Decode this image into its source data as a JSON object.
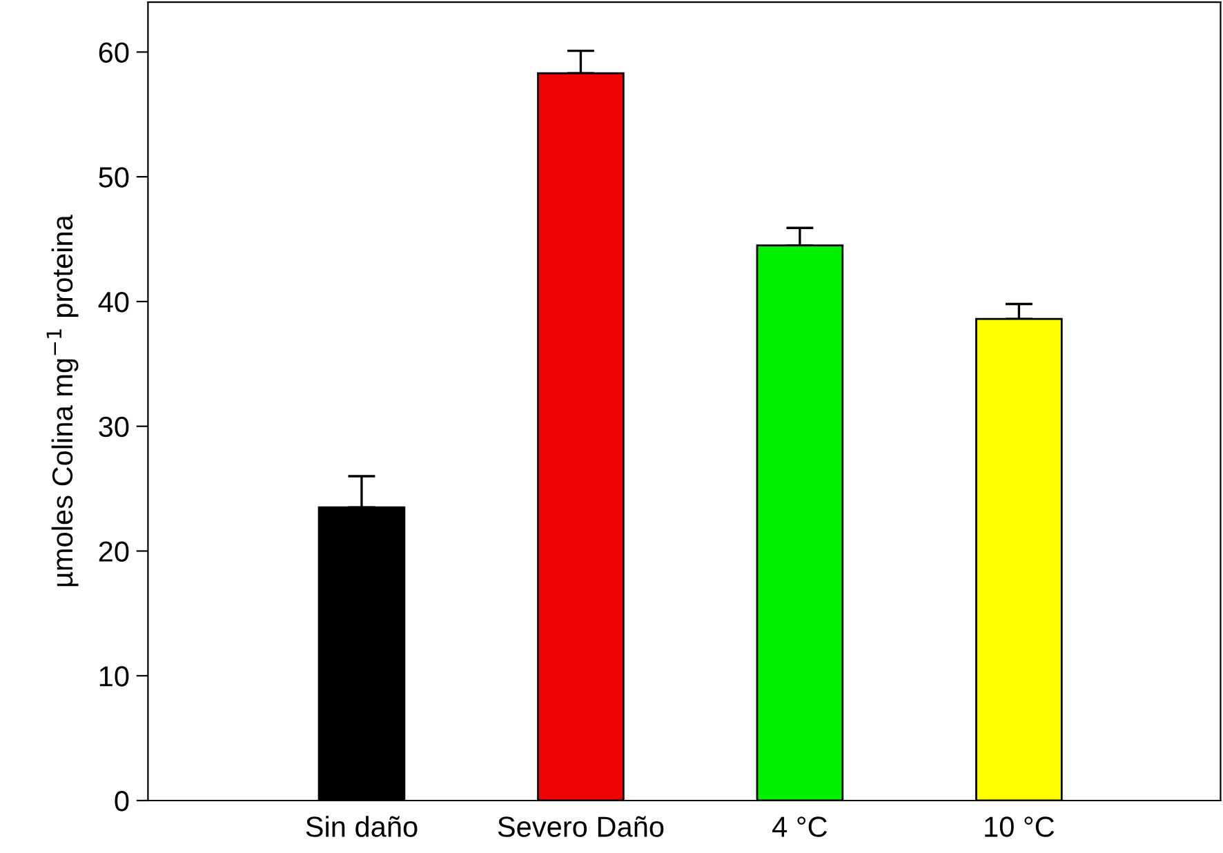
{
  "chart_data": {
    "type": "bar",
    "ylabel": "µmoles Colina mg$^{−1}$ proteina",
    "categories": [
      "Sin daño",
      "Severo Daño",
      "4 °C",
      "10 °C"
    ],
    "values": [
      23.5,
      58.3,
      44.5,
      38.6
    ],
    "colors": [
      "#000000",
      "#f00000",
      "#00f000",
      "#ffff00"
    ],
    "errors": [
      [
        23.5,
        26.0
      ],
      [
        58.3,
        60.1
      ],
      [
        44.5,
        45.9
      ],
      [
        38.6,
        39.8
      ]
    ],
    "ylim": [
      0,
      64
    ],
    "yticks": [
      0,
      10,
      20,
      30,
      40,
      50,
      60
    ],
    "grid": false,
    "legend": false
  }
}
